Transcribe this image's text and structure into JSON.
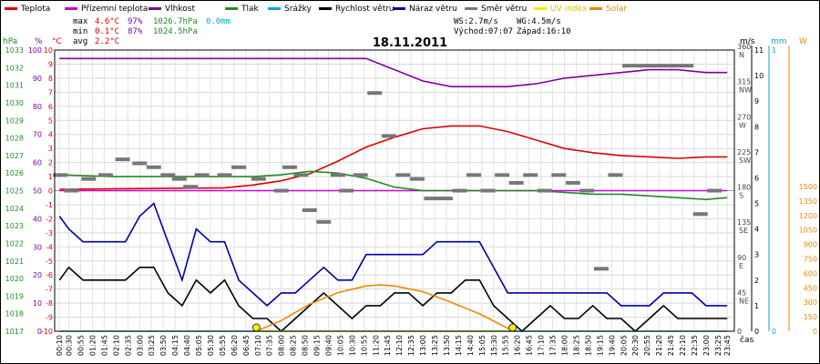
{
  "legend": [
    {
      "key": "teplota",
      "label": "Teplota",
      "color": "#dd0000"
    },
    {
      "key": "pocitova",
      "label": "Přízemní teplota",
      "color": "#cc00cc"
    },
    {
      "key": "vlhkost",
      "label": "Vlhkost",
      "color": "#8000a0"
    },
    {
      "key": "tlak",
      "label": "Tlak",
      "color": "#228b22"
    },
    {
      "key": "srazky",
      "label": "Srážky",
      "color": "#00aacc"
    },
    {
      "key": "rychlost",
      "label": "Rychlost větru",
      "color": "#000000"
    },
    {
      "key": "naraz",
      "label": "Náraz větru",
      "color": "#0000aa"
    },
    {
      "key": "smer",
      "label": "Směr větru",
      "color": "#777777"
    },
    {
      "key": "uv",
      "label": "UV index",
      "color": "#eeee00"
    },
    {
      "key": "solar",
      "label": "Solar",
      "color": "#ee8800"
    }
  ],
  "stats": {
    "max_label": "max",
    "max_temp": "4.6°C",
    "max_hum": "97%",
    "max_press": "1026.7hPa",
    "max_rain": "0.0mm",
    "min_label": "min",
    "min_temp": "0.1°C",
    "min_hum": "87%",
    "min_press": "1024.5hPa",
    "avg_label": "avg",
    "avg_temp": "2.2°C"
  },
  "wind_info": {
    "ws": "WS:2.7m/s",
    "wg": "WG:4.5m/s",
    "sunrise": "Východ:07:07",
    "sunset": "Západ:16:10"
  },
  "date": "18.11.2011",
  "axis_units": {
    "hpa": "hPa",
    "pct": "%",
    "degc": "°C",
    "ms": "m/s",
    "mm": "mm",
    "w": "W",
    "time": "čas"
  },
  "chart_data": {
    "type": "line",
    "title": "18.11.2011",
    "xlabel": "čas",
    "x_tick_labels": [
      "00:10",
      "00:30",
      "00:55",
      "01:20",
      "01:45",
      "02:10",
      "02:35",
      "03:00",
      "03:25",
      "03:50",
      "04:15",
      "04:40",
      "05:05",
      "05:30",
      "05:55",
      "06:20",
      "06:45",
      "07:10",
      "07:35",
      "08:00",
      "08:25",
      "08:50",
      "09:15",
      "09:40",
      "10:05",
      "10:30",
      "10:55",
      "11:20",
      "11:45",
      "12:10",
      "12:35",
      "13:00",
      "13:25",
      "13:50",
      "14:15",
      "14:40",
      "15:05",
      "15:30",
      "15:55",
      "16:20",
      "16:45",
      "17:10",
      "17:35",
      "18:00",
      "18:25",
      "18:50",
      "19:15",
      "19:40",
      "20:05",
      "20:30",
      "20:55",
      "21:20",
      "21:45",
      "22:10",
      "22:35",
      "23:00",
      "23:25",
      "23:45"
    ],
    "axes": {
      "temperature": {
        "unit": "°C",
        "range": [
          -10,
          10
        ],
        "ticks": [
          10,
          9,
          8,
          7,
          6,
          5,
          4,
          3,
          2,
          1,
          0,
          -1,
          -2,
          -3,
          -4,
          -5,
          -6,
          -7,
          -8,
          -9,
          -10
        ]
      },
      "humidity": {
        "unit": "%",
        "range": [
          0,
          100
        ],
        "ticks": [
          100,
          90,
          80,
          70,
          60,
          50,
          40,
          30,
          20,
          10,
          0
        ]
      },
      "pressure": {
        "unit": "hPa",
        "range": [
          1017,
          1033
        ],
        "ticks": [
          1033,
          1032,
          1031,
          1030,
          1029,
          1028,
          1027,
          1026,
          1025,
          1024,
          1023,
          1022,
          1021,
          1020,
          1019,
          1018,
          1017
        ]
      },
      "wind_direction": {
        "unit": "°",
        "range": [
          0,
          360
        ],
        "ticks": [
          {
            "value": 360,
            "label": "360",
            "dir": "N"
          },
          {
            "value": 315,
            "label": "315",
            "dir": "NW"
          },
          {
            "value": 270,
            "label": "270",
            "dir": "W"
          },
          {
            "value": 225,
            "label": "225",
            "dir": "SW"
          },
          {
            "value": 180,
            "label": "180",
            "dir": "S"
          },
          {
            "value": 135,
            "label": "135",
            "dir": "SE"
          },
          {
            "value": 90,
            "label": "90",
            "dir": "E"
          },
          {
            "value": 45,
            "label": "45",
            "dir": "NE"
          },
          {
            "value": 0,
            "label": "0",
            "dir": ""
          }
        ]
      },
      "wind_speed": {
        "unit": "m/s",
        "range": [
          0,
          11
        ],
        "ticks": [
          11,
          10,
          9,
          8,
          7,
          6,
          5,
          4,
          3,
          2,
          1,
          0
        ]
      },
      "rain": {
        "unit": "mm",
        "range": [
          0,
          1
        ],
        "ticks": [
          1,
          0
        ]
      },
      "solar": {
        "unit": "W",
        "range": [
          0,
          1500
        ],
        "ticks": [
          1500,
          1350,
          1200,
          1050,
          900,
          750,
          600,
          450,
          300,
          150,
          0
        ]
      }
    },
    "series": [
      {
        "name": "Teplota",
        "axis": "temperature",
        "color": "#dd0000",
        "x": [
          0.17,
          6,
          7,
          8,
          9,
          10,
          11,
          12,
          13,
          14,
          15,
          16,
          17,
          18,
          19,
          20,
          21,
          22,
          23,
          23.75
        ],
        "values": [
          0.1,
          0.2,
          0.4,
          0.7,
          1.2,
          2.1,
          3.1,
          3.8,
          4.4,
          4.6,
          4.6,
          4.2,
          3.6,
          3.0,
          2.7,
          2.5,
          2.4,
          2.3,
          2.4,
          2.4
        ]
      },
      {
        "name": "Přízemní teplota",
        "axis": "temperature",
        "color": "#cc00cc",
        "x": [
          0.17,
          23.75
        ],
        "values": [
          0.0,
          0.0
        ]
      },
      {
        "name": "Vlhkost",
        "axis": "humidity",
        "color": "#8000a0",
        "x": [
          0.17,
          7,
          8,
          9,
          10,
          11,
          12,
          13,
          14,
          15,
          16,
          17,
          18,
          19,
          20,
          21,
          22,
          23,
          23.75
        ],
        "values": [
          97,
          97,
          97,
          97,
          97,
          97,
          93,
          89,
          87,
          87,
          87,
          88,
          90,
          91,
          92,
          93,
          93,
          92,
          92
        ]
      },
      {
        "name": "Tlak",
        "axis": "pressure",
        "color": "#228b22",
        "x": [
          0.17,
          2,
          4,
          6,
          7,
          8,
          9,
          10,
          11,
          12,
          13,
          14,
          15,
          16,
          17,
          18,
          19,
          20,
          21,
          22,
          23,
          23.75
        ],
        "values": [
          1025.9,
          1025.8,
          1025.8,
          1025.8,
          1025.8,
          1025.9,
          1026.1,
          1026.0,
          1025.7,
          1025.2,
          1025.0,
          1025.0,
          1025.0,
          1025.0,
          1025.0,
          1024.9,
          1024.8,
          1024.8,
          1024.7,
          1024.6,
          1024.5,
          1024.6
        ]
      },
      {
        "name": "Rychlost větru",
        "axis": "wind_speed",
        "color": "#000000",
        "x": [
          0.17,
          0.5,
          1,
          1.5,
          2,
          2.5,
          3,
          3.5,
          4,
          4.5,
          5,
          5.5,
          6,
          6.5,
          7,
          7.5,
          8,
          8.5,
          9,
          9.5,
          10,
          10.5,
          11,
          11.5,
          12,
          12.5,
          13,
          13.5,
          14,
          14.5,
          15,
          15.5,
          16,
          16.5,
          17,
          17.5,
          18,
          18.5,
          19,
          19.5,
          20,
          20.5,
          21,
          21.5,
          22,
          22.5,
          23,
          23.5,
          23.75
        ],
        "values": [
          2,
          2.5,
          2,
          2,
          2,
          2,
          2.5,
          2.5,
          1.5,
          1,
          2,
          1.5,
          2,
          1,
          0.5,
          0.5,
          0,
          0.5,
          1,
          1.5,
          1,
          0.5,
          1,
          1,
          1.5,
          1.5,
          1,
          1.5,
          1.5,
          2,
          2,
          1,
          0.5,
          0,
          0.5,
          1,
          0.5,
          0.5,
          1,
          0.5,
          0.5,
          0,
          0.5,
          1,
          0.5,
          0.5,
          0.5,
          0.5,
          0.5
        ]
      },
      {
        "name": "Náraz větru",
        "axis": "wind_speed",
        "color": "#0000aa",
        "x": [
          0.17,
          0.5,
          1,
          1.5,
          2,
          2.5,
          3,
          3.5,
          4,
          4.5,
          5,
          5.5,
          6,
          6.5,
          7,
          7.5,
          8,
          8.5,
          9,
          9.5,
          10,
          10.5,
          11,
          11.5,
          12,
          12.5,
          13,
          13.5,
          14,
          14.5,
          15,
          15.5,
          16,
          16.5,
          17,
          17.5,
          18,
          18.5,
          19,
          19.5,
          20,
          20.5,
          21,
          21.5,
          22,
          22.5,
          23,
          23.5,
          23.75
        ],
        "values": [
          4.5,
          4,
          3.5,
          3.5,
          3.5,
          3.5,
          4.5,
          5,
          3.5,
          2,
          4,
          3.5,
          3.5,
          2,
          1.5,
          1,
          1.5,
          1.5,
          2,
          2.5,
          2,
          2,
          3,
          3,
          3,
          3,
          3,
          3.5,
          3.5,
          3.5,
          3.5,
          2.5,
          1.5,
          1.5,
          1.5,
          1.5,
          1.5,
          1.5,
          1.5,
          1.5,
          1,
          1,
          1,
          1.5,
          1.5,
          1.5,
          1,
          1,
          1
        ]
      },
      {
        "name": "Solar",
        "axis": "solar",
        "color": "#ee8800",
        "x": [
          7.12,
          8,
          9,
          10,
          11,
          11.5,
          12,
          13,
          14,
          15,
          16,
          16.17
        ],
        "values": [
          0,
          110,
          280,
          400,
          470,
          480,
          470,
          410,
          300,
          180,
          30,
          0
        ]
      },
      {
        "name": "Směr větru",
        "axis": "wind_direction",
        "color": "#777777",
        "style": "dashes",
        "x": [
          0.2,
          0.6,
          1.2,
          1.8,
          2.4,
          3.0,
          3.5,
          4.0,
          4.4,
          4.8,
          5.2,
          6.0,
          6.5,
          7.2,
          8.0,
          8.3,
          8.7,
          9.0,
          9.5,
          10.0,
          10.3,
          10.8,
          11.3,
          11.8,
          12.3,
          12.8,
          13.3,
          13.8,
          14.3,
          14.8,
          15.3,
          15.8,
          16.3,
          16.8,
          17.3,
          17.8,
          18.3,
          18.8,
          19.3,
          19.8,
          20.3,
          20.8,
          21.3,
          21.8,
          22.3,
          22.8,
          23.3
        ],
        "values": [
          200,
          180,
          195,
          200,
          220,
          215,
          210,
          200,
          195,
          185,
          200,
          200,
          210,
          195,
          180,
          210,
          200,
          155,
          140,
          200,
          180,
          200,
          305,
          250,
          200,
          195,
          170,
          170,
          180,
          200,
          180,
          200,
          190,
          200,
          180,
          200,
          190,
          180,
          80,
          200,
          340,
          340,
          340,
          340,
          340,
          150,
          180
        ]
      },
      {
        "name": "Srážky",
        "axis": "rain",
        "color": "#00aacc",
        "x": [
          0.17,
          23.75
        ],
        "values": [
          0,
          0
        ]
      },
      {
        "name": "UV index",
        "axis": "solar",
        "color": "#eeee00",
        "x": [
          7.12,
          16.17
        ],
        "values": [
          0,
          0
        ]
      }
    ],
    "markers": [
      {
        "name": "Východ",
        "time": "07:07",
        "x": 7.12
      },
      {
        "name": "Západ",
        "time": "16:10",
        "x": 16.17
      }
    ]
  }
}
